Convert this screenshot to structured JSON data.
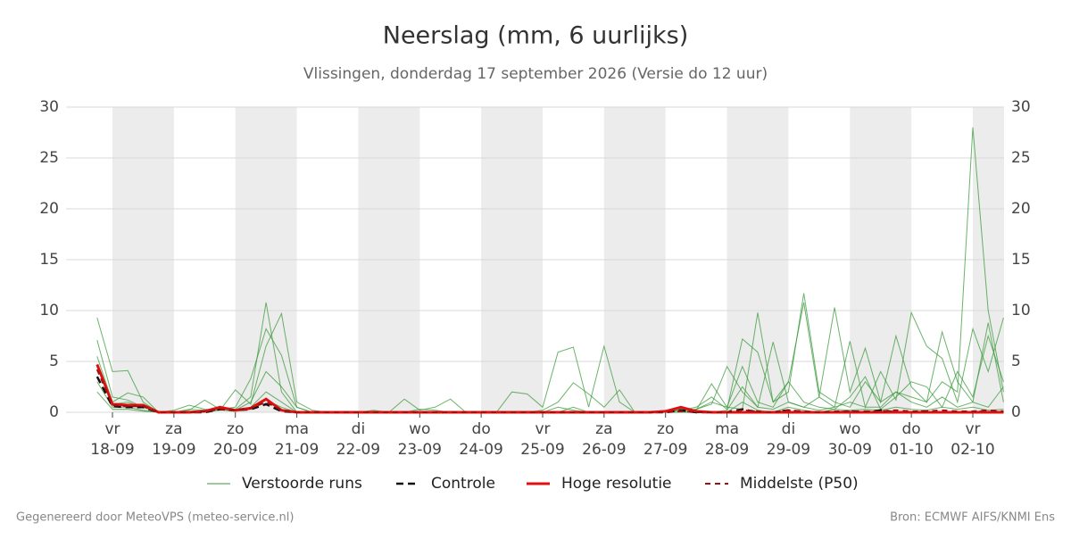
{
  "chart_data": {
    "type": "line",
    "title": "Neerslag (mm, 6 uurlijks)",
    "subtitle": "Vlissingen, donderdag 17 september 2026 (Versie do 12 uur)",
    "footer_left": "Gegenereerd door MeteoVPS (meteo-service.nl)",
    "footer_right": "Bron: ECMWF AIFS/KNMI Ens",
    "weekdays": [
      null,
      "vr",
      null,
      null,
      null,
      "za",
      null,
      null,
      null,
      "zo",
      null,
      null,
      null,
      "ma",
      null,
      null,
      null,
      "di",
      null,
      null,
      null,
      "wo",
      null,
      null,
      null,
      "do",
      null,
      null,
      null,
      "vr",
      null,
      null,
      null,
      "za",
      null,
      null,
      null,
      "zo",
      null,
      null,
      null,
      "ma",
      null,
      null,
      null,
      "di",
      null,
      null,
      null,
      "wo",
      null,
      null,
      null,
      "do",
      null,
      null,
      null,
      "vr",
      null,
      null
    ],
    "categories": [
      null,
      "18-09",
      null,
      null,
      null,
      "19-09",
      null,
      null,
      null,
      "20-09",
      null,
      null,
      null,
      "21-09",
      null,
      null,
      null,
      "22-09",
      null,
      null,
      null,
      "23-09",
      null,
      null,
      null,
      "24-09",
      null,
      null,
      null,
      "25-09",
      null,
      null,
      null,
      "26-09",
      null,
      null,
      null,
      "27-09",
      null,
      null,
      null,
      "28-09",
      null,
      null,
      null,
      "29-09",
      null,
      null,
      null,
      "30-09",
      null,
      null,
      null,
      "01-10",
      null,
      null,
      null,
      "02-10",
      null,
      null
    ],
    "ylim": [
      0,
      30
    ],
    "yticks": [
      0,
      5,
      10,
      15,
      20,
      25,
      30
    ],
    "grid": true,
    "ensemble": {
      "name": "Verstoorde runs",
      "color": "#3a9a3a",
      "runs": [
        [
          9.3,
          4.0,
          4.1,
          1.0,
          0,
          0,
          0.3,
          0.2,
          0.5,
          0.3,
          1.5,
          10.8,
          2.0,
          0,
          0,
          0,
          0,
          0,
          0,
          0,
          0,
          0,
          0,
          0,
          0,
          0,
          0,
          0,
          0,
          0,
          0,
          0,
          0,
          0,
          0,
          0,
          0,
          0,
          0.2,
          0.3,
          1.0,
          0.5,
          0.3,
          9.8,
          1.0,
          2.0,
          11.7,
          2.0,
          1.0,
          0.5,
          3.0,
          1.0,
          2.0,
          1.5,
          1.0,
          3.0,
          2.0,
          28.0,
          10.0,
          2.0
        ],
        [
          7.1,
          1.5,
          1.2,
          0.5,
          0,
          0.2,
          0.7,
          0.3,
          0.2,
          2.2,
          0.8,
          6.5,
          9.7,
          1.0,
          0.2,
          0,
          0,
          0,
          0.2,
          0,
          0,
          0,
          0,
          0,
          0,
          0,
          0,
          2.0,
          1.8,
          0.5,
          5.9,
          6.4,
          0.5,
          6.5,
          1.0,
          0,
          0,
          0,
          0.2,
          0.5,
          1.5,
          0.3,
          7.2,
          5.9,
          1.0,
          3.0,
          10.8,
          1.5,
          0.5,
          7.0,
          0.5,
          4.0,
          1.2,
          9.8,
          6.5,
          5.3,
          1.0,
          8.2,
          4.0,
          9.3
        ],
        [
          5.5,
          1.0,
          1.9,
          1.5,
          0,
          0,
          0.2,
          1.2,
          0.3,
          0.5,
          3.3,
          8.2,
          5.6,
          0.5,
          0,
          0,
          0,
          0,
          0,
          0,
          1.3,
          0.2,
          0.5,
          1.3,
          0,
          0,
          0,
          0,
          0,
          0.2,
          1.0,
          2.9,
          1.8,
          0.5,
          2.2,
          0,
          0,
          0,
          0,
          0.3,
          0.8,
          4.5,
          2.0,
          0.5,
          6.9,
          1.0,
          0.5,
          1.5,
          10.3,
          2.0,
          6.3,
          1.0,
          7.5,
          2.5,
          1.0,
          7.9,
          3.0,
          1.0,
          8.8,
          1.0
        ],
        [
          4.5,
          0.8,
          1.0,
          0.5,
          0,
          0,
          0,
          0.2,
          0.4,
          0.2,
          1.0,
          4.0,
          2.5,
          0.5,
          0,
          0,
          0,
          0,
          0,
          0,
          0,
          0.3,
          0.2,
          0,
          0,
          0,
          0,
          0,
          0,
          0,
          0.5,
          0.2,
          0,
          0,
          0,
          0,
          0,
          0,
          0.3,
          0.2,
          2.8,
          0.5,
          4.5,
          1.0,
          0.5,
          3.0,
          1.0,
          0.5,
          0.3,
          1.5,
          3.5,
          0.3,
          1.5,
          3.0,
          2.5,
          0.5,
          4.0,
          1.5,
          7.5,
          3.0
        ],
        [
          3.0,
          0.5,
          0.5,
          0.2,
          0,
          0,
          0,
          0.1,
          0.3,
          0.1,
          0.5,
          2.0,
          1.0,
          0,
          0,
          0,
          0,
          0,
          0,
          0,
          0,
          0,
          0,
          0,
          0,
          0,
          0,
          0,
          0,
          0,
          0,
          0,
          0,
          0,
          0,
          0,
          0,
          0,
          0,
          0,
          0,
          0.2,
          2.5,
          0.5,
          0.3,
          1.0,
          0.5,
          0.2,
          0.5,
          1.0,
          0.5,
          0.5,
          2.0,
          1.0,
          0.5,
          1.5,
          0.5,
          1.0,
          0.5,
          2.5
        ],
        [
          2.0,
          0.3,
          0.3,
          0.1,
          0,
          0,
          0,
          0,
          0.2,
          0.1,
          0.3,
          1.2,
          0.5,
          0,
          0,
          0,
          0,
          0,
          0,
          0,
          0,
          0,
          0,
          0,
          0,
          0,
          0,
          0,
          0,
          0,
          0,
          0.5,
          0,
          0,
          0,
          0,
          0,
          0,
          0,
          0,
          0,
          0,
          1.0,
          0.2,
          0,
          0.5,
          0.2,
          0,
          0.3,
          0.2,
          0.3,
          0.2,
          0.5,
          0.3,
          0.2,
          0.5,
          0.3,
          0.5,
          0.2,
          0.3
        ]
      ]
    },
    "series": [
      {
        "name": "Controle",
        "color": "#111111",
        "dash": "8 5",
        "width": 2.5,
        "values": [
          3.5,
          0.6,
          0.5,
          0.5,
          0,
          0,
          0,
          0,
          0.3,
          0.2,
          0.3,
          0.8,
          0.1,
          0,
          0,
          0,
          0,
          0,
          0,
          0,
          0,
          0,
          0,
          0,
          0,
          0,
          0,
          0,
          0,
          0,
          0,
          0,
          0,
          0,
          0,
          0,
          0,
          0,
          0.2,
          0,
          0,
          0,
          0.3,
          0,
          0,
          0.2,
          0,
          0,
          0,
          0.1,
          0,
          0.2,
          0,
          0,
          0.1,
          0,
          0,
          0,
          0.1,
          0
        ]
      },
      {
        "name": "Hoge resolutie",
        "color": "#e01010",
        "dash": null,
        "width": 3,
        "values": [
          4.7,
          0.8,
          0.7,
          0.7,
          0,
          0,
          0,
          0.1,
          0.5,
          0.2,
          0.4,
          1.3,
          0.2,
          0,
          0,
          0,
          0,
          0,
          0,
          0,
          0,
          0,
          0,
          0,
          0,
          0,
          0,
          0,
          0,
          0,
          0,
          0,
          0,
          0,
          0,
          0,
          0,
          0.1,
          0.5,
          0.1,
          0,
          0,
          0,
          0,
          0,
          0,
          0,
          0,
          0,
          0,
          0,
          0,
          0,
          0,
          0,
          0,
          0,
          0,
          0,
          0
        ]
      },
      {
        "name": "Middelste (P50)",
        "color": "#a01010",
        "dash": "6 5",
        "width": 2,
        "values": [
          4.2,
          0.7,
          0.6,
          0.6,
          0,
          0,
          0,
          0.1,
          0.3,
          0.2,
          0.4,
          1.0,
          0.2,
          0,
          0,
          0,
          0,
          0,
          0,
          0,
          0,
          0,
          0,
          0,
          0,
          0,
          0,
          0,
          0,
          0,
          0,
          0,
          0,
          0,
          0,
          0,
          0,
          0,
          0.1,
          0,
          0,
          0,
          0.2,
          0.1,
          0,
          0.2,
          0.1,
          0,
          0.1,
          0.1,
          0.1,
          0.1,
          0.2,
          0.1,
          0.1,
          0.2,
          0.1,
          0.1,
          0.2,
          0.1
        ]
      }
    ]
  }
}
